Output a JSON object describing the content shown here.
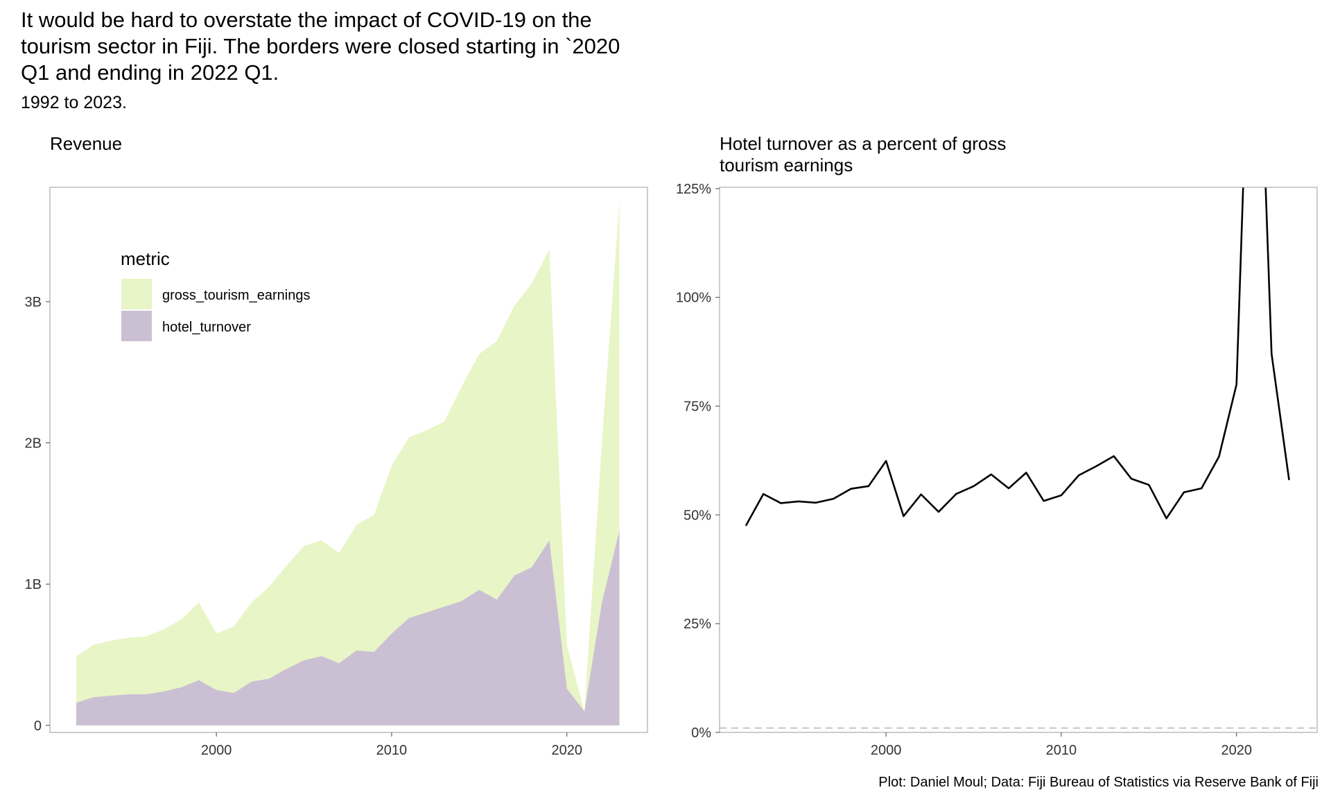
{
  "title": "It would be hard to overstate the impact of COVID-19 on the tourism sector in Fiji. The borders were closed starting in `2020 Q1 and ending in 2022 Q1.",
  "subtitle": "1992 to 2023.",
  "caption": "Plot: Daniel Moul; Data: Fiji Bureau of Statistics via Reserve Bank of Fiji",
  "chart_data": [
    {
      "type": "area",
      "title": "Revenue",
      "xlabel": "",
      "ylabel": "",
      "xlim": [
        1990.5,
        2024.6
      ],
      "ylim": [
        -0.05,
        3.81
      ],
      "x_ticks": [
        2000,
        2010,
        2020
      ],
      "y_ticks": [
        0,
        1,
        2,
        3
      ],
      "y_tick_labels": [
        "0",
        "1B",
        "2B",
        "3B"
      ],
      "legend": {
        "title": "metric",
        "position": "top-left"
      },
      "x": [
        1992,
        1993,
        1994,
        1995,
        1996,
        1997,
        1998,
        1999,
        2000,
        2001,
        2002,
        2003,
        2004,
        2005,
        2006,
        2007,
        2008,
        2009,
        2010,
        2011,
        2012,
        2013,
        2014,
        2015,
        2016,
        2017,
        2018,
        2019,
        2020,
        2021,
        2022,
        2023
      ],
      "series": [
        {
          "name": "gross_tourism_earnings",
          "color": "#e8f5c6",
          "values": [
            0.49,
            0.57,
            0.6,
            0.62,
            0.63,
            0.68,
            0.75,
            0.87,
            0.65,
            0.7,
            0.87,
            0.98,
            1.13,
            1.27,
            1.31,
            1.22,
            1.42,
            1.49,
            1.84,
            2.04,
            2.09,
            2.15,
            2.4,
            2.63,
            2.72,
            2.97,
            3.13,
            3.37,
            0.57,
            0.1,
            2.0,
            3.71
          ]
        },
        {
          "name": "hotel_turnover",
          "color": "#cbc0d3",
          "values": [
            0.16,
            0.2,
            0.21,
            0.22,
            0.22,
            0.24,
            0.27,
            0.32,
            0.25,
            0.23,
            0.31,
            0.33,
            0.4,
            0.46,
            0.49,
            0.44,
            0.53,
            0.52,
            0.65,
            0.76,
            0.8,
            0.84,
            0.88,
            0.96,
            0.89,
            1.06,
            1.12,
            1.31,
            0.26,
            0.1,
            0.87,
            1.38
          ]
        }
      ]
    },
    {
      "type": "line",
      "title": "Hotel turnover as a percent of gross tourism earnings",
      "xlabel": "",
      "ylabel": "",
      "xlim": [
        1990.5,
        2024.6
      ],
      "ylim": [
        0,
        1.253
      ],
      "x_ticks": [
        2000,
        2010,
        2020
      ],
      "y_ticks": [
        0,
        0.25,
        0.5,
        0.75,
        1.0,
        1.25
      ],
      "y_tick_labels": [
        "0%",
        "25%",
        "50%",
        "75%",
        "100%",
        "125%"
      ],
      "reference_line": {
        "y": 0.01,
        "style": "dashed",
        "color": "#bbbbbb"
      },
      "series": [
        {
          "name": "",
          "color": "#000000",
          "x": [
            1992,
            1993,
            1994,
            1995,
            1996,
            1997,
            1998,
            1999,
            2000,
            2001,
            2002,
            2003,
            2004,
            2005,
            2006,
            2007,
            2008,
            2009,
            2010,
            2011,
            2012,
            2013,
            2014,
            2015,
            2016,
            2017,
            2018,
            2019,
            2020,
            2021,
            2022,
            2023
          ],
          "values": [
            0.475,
            0.548,
            0.527,
            0.531,
            0.528,
            0.537,
            0.56,
            0.566,
            0.624,
            0.497,
            0.547,
            0.507,
            0.548,
            0.566,
            0.593,
            0.561,
            0.597,
            0.532,
            0.545,
            0.591,
            0.612,
            0.635,
            0.583,
            0.569,
            0.492,
            0.552,
            0.561,
            0.634,
            0.8,
            2.0,
            0.87,
            0.58
          ]
        }
      ]
    }
  ]
}
